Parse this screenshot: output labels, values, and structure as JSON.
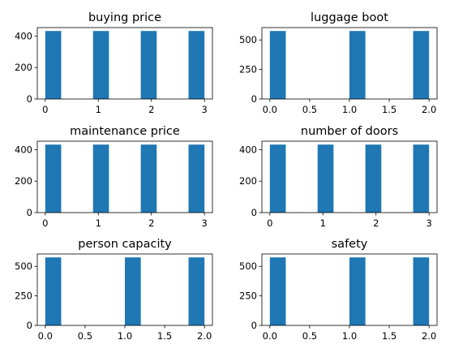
{
  "chart_data": [
    {
      "type": "bar",
      "title": "buying price",
      "bins": [
        {
          "x0": 0.0,
          "x1": 0.3,
          "count": 432
        },
        {
          "x0": 0.9,
          "x1": 1.2,
          "count": 432
        },
        {
          "x0": 1.8,
          "x1": 2.1,
          "count": 432
        },
        {
          "x0": 2.7,
          "x1": 3.0,
          "count": 432
        }
      ],
      "xlim": [
        -0.15,
        3.15
      ],
      "ylim": [
        0,
        453.6
      ],
      "xticks": [
        {
          "value": 0,
          "label": "0"
        },
        {
          "value": 1,
          "label": "1"
        },
        {
          "value": 2,
          "label": "2"
        },
        {
          "value": 3,
          "label": "3"
        }
      ],
      "yticks": [
        {
          "value": 0,
          "label": "0"
        },
        {
          "value": 200,
          "label": "200"
        },
        {
          "value": 400,
          "label": "400"
        }
      ],
      "color": "#1f77b4"
    },
    {
      "type": "bar",
      "title": "luggage boot",
      "bins": [
        {
          "x0": 0.0,
          "x1": 0.2,
          "count": 576
        },
        {
          "x0": 1.0,
          "x1": 1.2,
          "count": 576
        },
        {
          "x0": 1.8,
          "x1": 2.0,
          "count": 576
        }
      ],
      "xlim": [
        -0.1,
        2.1
      ],
      "ylim": [
        0,
        604.8
      ],
      "xticks": [
        {
          "value": 0.0,
          "label": "0.0"
        },
        {
          "value": 0.5,
          "label": "0.5"
        },
        {
          "value": 1.0,
          "label": "1.0"
        },
        {
          "value": 1.5,
          "label": "1.5"
        },
        {
          "value": 2.0,
          "label": "2.0"
        }
      ],
      "yticks": [
        {
          "value": 0,
          "label": "0"
        },
        {
          "value": 250,
          "label": "250"
        },
        {
          "value": 500,
          "label": "500"
        }
      ],
      "color": "#1f77b4"
    },
    {
      "type": "bar",
      "title": "maintenance price",
      "bins": [
        {
          "x0": 0.0,
          "x1": 0.3,
          "count": 432
        },
        {
          "x0": 0.9,
          "x1": 1.2,
          "count": 432
        },
        {
          "x0": 1.8,
          "x1": 2.1,
          "count": 432
        },
        {
          "x0": 2.7,
          "x1": 3.0,
          "count": 432
        }
      ],
      "xlim": [
        -0.15,
        3.15
      ],
      "ylim": [
        0,
        453.6
      ],
      "xticks": [
        {
          "value": 0,
          "label": "0"
        },
        {
          "value": 1,
          "label": "1"
        },
        {
          "value": 2,
          "label": "2"
        },
        {
          "value": 3,
          "label": "3"
        }
      ],
      "yticks": [
        {
          "value": 0,
          "label": "0"
        },
        {
          "value": 200,
          "label": "200"
        },
        {
          "value": 400,
          "label": "400"
        }
      ],
      "color": "#1f77b4"
    },
    {
      "type": "bar",
      "title": "number of doors",
      "bins": [
        {
          "x0": 0.0,
          "x1": 0.3,
          "count": 432
        },
        {
          "x0": 0.9,
          "x1": 1.2,
          "count": 432
        },
        {
          "x0": 1.8,
          "x1": 2.1,
          "count": 432
        },
        {
          "x0": 2.7,
          "x1": 3.0,
          "count": 432
        }
      ],
      "xlim": [
        -0.15,
        3.15
      ],
      "ylim": [
        0,
        453.6
      ],
      "xticks": [
        {
          "value": 0,
          "label": "0"
        },
        {
          "value": 1,
          "label": "1"
        },
        {
          "value": 2,
          "label": "2"
        },
        {
          "value": 3,
          "label": "3"
        }
      ],
      "yticks": [
        {
          "value": 0,
          "label": "0"
        },
        {
          "value": 200,
          "label": "200"
        },
        {
          "value": 400,
          "label": "400"
        }
      ],
      "color": "#1f77b4"
    },
    {
      "type": "bar",
      "title": "person capacity",
      "bins": [
        {
          "x0": 0.0,
          "x1": 0.2,
          "count": 576
        },
        {
          "x0": 1.0,
          "x1": 1.2,
          "count": 576
        },
        {
          "x0": 1.8,
          "x1": 2.0,
          "count": 576
        }
      ],
      "xlim": [
        -0.1,
        2.1
      ],
      "ylim": [
        0,
        604.8
      ],
      "xticks": [
        {
          "value": 0.0,
          "label": "0.0"
        },
        {
          "value": 0.5,
          "label": "0.5"
        },
        {
          "value": 1.0,
          "label": "1.0"
        },
        {
          "value": 1.5,
          "label": "1.5"
        },
        {
          "value": 2.0,
          "label": "2.0"
        }
      ],
      "yticks": [
        {
          "value": 0,
          "label": "0"
        },
        {
          "value": 250,
          "label": "250"
        },
        {
          "value": 500,
          "label": "500"
        }
      ],
      "color": "#1f77b4"
    },
    {
      "type": "bar",
      "title": "safety",
      "bins": [
        {
          "x0": 0.0,
          "x1": 0.2,
          "count": 576
        },
        {
          "x0": 1.0,
          "x1": 1.2,
          "count": 576
        },
        {
          "x0": 1.8,
          "x1": 2.0,
          "count": 576
        }
      ],
      "xlim": [
        -0.1,
        2.1
      ],
      "ylim": [
        0,
        604.8
      ],
      "xticks": [
        {
          "value": 0.0,
          "label": "0.0"
        },
        {
          "value": 0.5,
          "label": "0.5"
        },
        {
          "value": 1.0,
          "label": "1.0"
        },
        {
          "value": 1.5,
          "label": "1.5"
        },
        {
          "value": 2.0,
          "label": "2.0"
        }
      ],
      "yticks": [
        {
          "value": 0,
          "label": "0"
        },
        {
          "value": 250,
          "label": "250"
        },
        {
          "value": 500,
          "label": "500"
        }
      ],
      "color": "#1f77b4"
    }
  ]
}
